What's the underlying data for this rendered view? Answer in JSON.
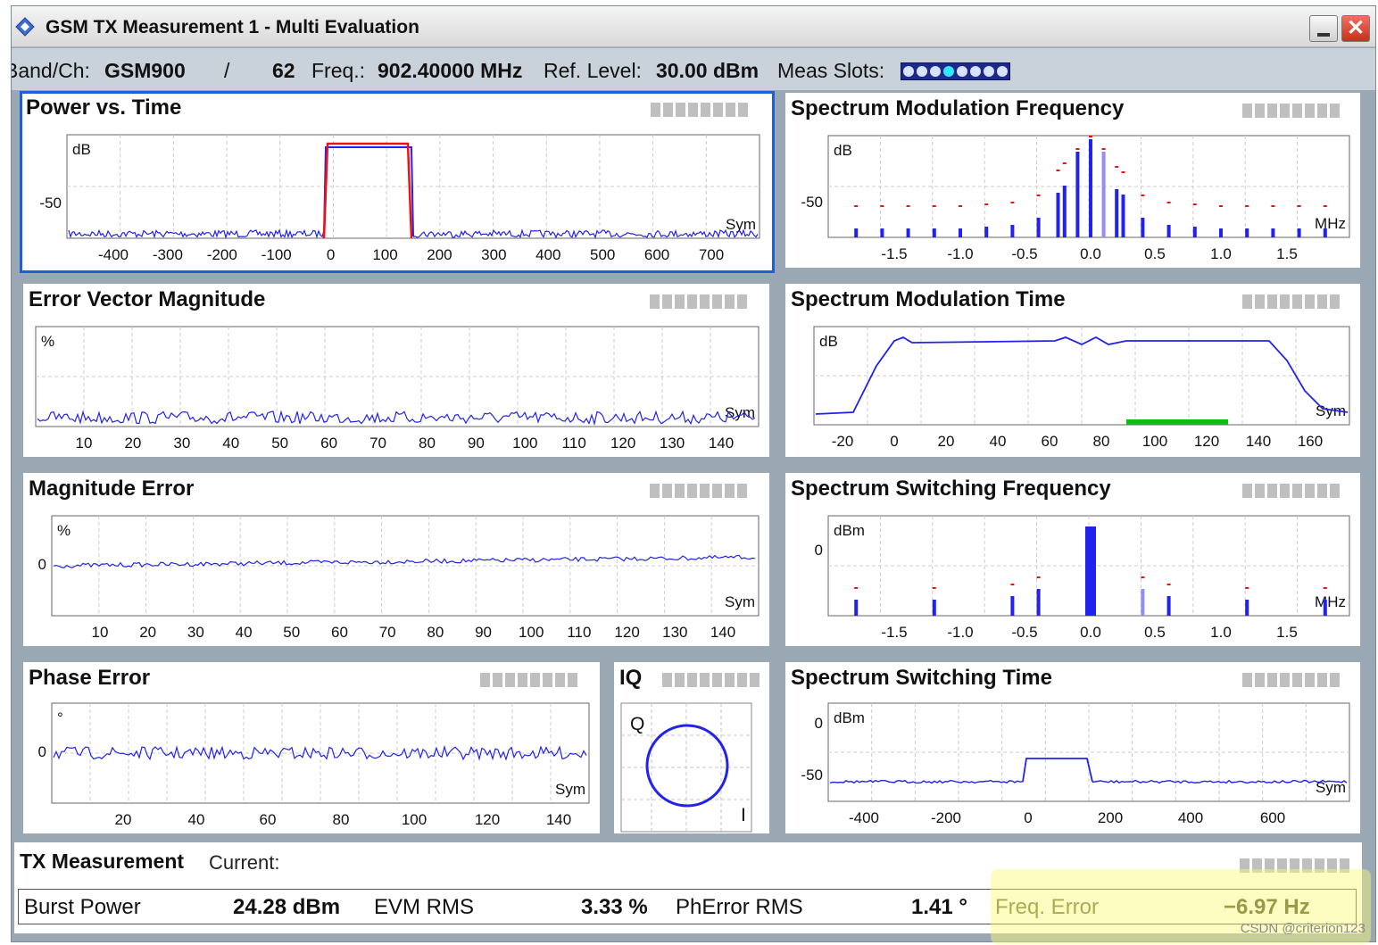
{
  "window": {
    "title": "GSM TX Measurement 1 - Multi Evaluation",
    "close_glyph": "✕"
  },
  "infobar": {
    "band_label": "Band/Ch:",
    "band_value": "GSM900",
    "separator": "/",
    "channel": "62",
    "freq_label": "Freq.:",
    "freq_value": "902.40000 MHz",
    "ref_label": "Ref. Level:",
    "ref_value": "30.00 dBm",
    "slots_label": "Meas Slots:",
    "slots": [
      false,
      false,
      false,
      true,
      false,
      false,
      false,
      false
    ]
  },
  "panels": {
    "pvt": {
      "title": "Power vs. Time",
      "ylabel": "dB",
      "xunit": "Sym",
      "yticks": [
        "-50"
      ],
      "xticks": [
        "-400",
        "-300",
        "-200",
        "-100",
        "0",
        "100",
        "200",
        "300",
        "400",
        "500",
        "600",
        "700"
      ]
    },
    "smf": {
      "title": "Spectrum Modulation Frequency",
      "ylabel": "dB",
      "xunit": "MHz",
      "yticks": [
        "-50"
      ],
      "xticks": [
        "-1.5",
        "-1.0",
        "-0.5",
        "0.0",
        "0.5",
        "1.0",
        "1.5"
      ]
    },
    "evm": {
      "title": "Error Vector Magnitude",
      "ylabel": "%",
      "xunit": "Sym",
      "xticks": [
        "10",
        "20",
        "30",
        "40",
        "50",
        "60",
        "70",
        "80",
        "90",
        "100",
        "110",
        "120",
        "130",
        "140"
      ]
    },
    "smt": {
      "title": "Spectrum Modulation Time",
      "ylabel": "dB",
      "xunit": "Sym",
      "xticks": [
        "-20",
        "0",
        "20",
        "40",
        "60",
        "80",
        "100",
        "120",
        "140",
        "160"
      ]
    },
    "mag": {
      "title": "Magnitude Error",
      "ylabel": "%",
      "xunit": "Sym",
      "yticks": [
        "0"
      ],
      "xticks": [
        "10",
        "20",
        "30",
        "40",
        "50",
        "60",
        "70",
        "80",
        "90",
        "100",
        "110",
        "120",
        "130",
        "140"
      ]
    },
    "ssf": {
      "title": "Spectrum Switching Frequency",
      "ylabel": "dBm",
      "xunit": "MHz",
      "yticks": [
        "0"
      ],
      "xticks": [
        "-1.5",
        "-1.0",
        "-0.5",
        "0.0",
        "0.5",
        "1.0",
        "1.5"
      ]
    },
    "pe": {
      "title": "Phase Error",
      "ylabel": "°",
      "xunit": "Sym",
      "yticks": [
        "0"
      ],
      "xticks": [
        "20",
        "40",
        "60",
        "80",
        "100",
        "120",
        "140"
      ]
    },
    "iq": {
      "title": "IQ",
      "q_label": "Q",
      "i_label": "I"
    },
    "sst": {
      "title": "Spectrum Switching Time",
      "ylabel": "dBm",
      "xunit": "Sym",
      "yticks": [
        "0",
        "-50"
      ],
      "xticks": [
        "-400",
        "-200",
        "0",
        "200",
        "400",
        "600"
      ]
    }
  },
  "tx": {
    "title": "TX Measurement",
    "mode": "Current:",
    "burst_power_label": "Burst Power",
    "burst_power_value": "24.28 dBm",
    "evm_label": "EVM RMS",
    "evm_value": "3.33 %",
    "pherror_label": "PhError RMS",
    "pherror_value": "1.41 °",
    "freq_error_label": "Freq. Error",
    "freq_error_value": "−6.97 Hz"
  },
  "watermark": "CSDN @criterion123",
  "colors": {
    "trace": "#2222ee",
    "limit": "#ee1111",
    "highlight": "#fafa78",
    "selected_border": "#1c5fd8",
    "green_bar": "#11bb11"
  }
}
